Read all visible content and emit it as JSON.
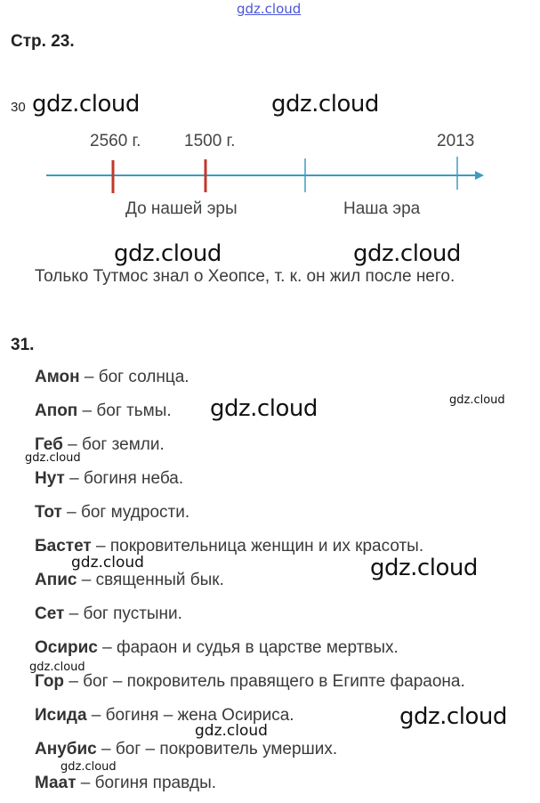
{
  "watermark": "gdz.cloud",
  "top_link": "gdz.cloud",
  "page_label": "Стр. 23.",
  "task30": {
    "number": "30",
    "timeline": {
      "marks": [
        {
          "label": "2560 г.",
          "color": "#c0392b"
        },
        {
          "label": "1500 г.",
          "color": "#c0392b"
        },
        {
          "label": "",
          "color": "#3a9bc7"
        },
        {
          "label": "2013",
          "color": "#3a9bc7"
        }
      ],
      "era_before": "До нашей эры",
      "era_after": "Наша эра",
      "axis_color": "#3a9bc7"
    },
    "answer": "Только Тутмос знал о Хеопсе, т. к. он жил после него."
  },
  "task31": {
    "number": "31.",
    "items": [
      {
        "name": "Амон",
        "desc": " – бог солнца."
      },
      {
        "name": "Апоп",
        "desc": " – бог тьмы."
      },
      {
        "name": "Геб",
        "desc": " – бог земли."
      },
      {
        "name": "Нут",
        "desc": " – богиня неба."
      },
      {
        "name": "Тот",
        "desc": " – бог мудрости."
      },
      {
        "name": "Бастет",
        "desc": " – покровительница женщин и их красоты."
      },
      {
        "name": "Апис",
        "desc": " – священный бык."
      },
      {
        "name": "Сет",
        "desc": " – бог пустыни."
      },
      {
        "name": "Осирис",
        "desc": " – фараон и судья в царстве мертвых."
      },
      {
        "name": "Гор",
        "desc": " – бог – покровитель правящего в Египте фараона."
      },
      {
        "name": "Исида",
        "desc": " – богиня – жена Осириса."
      },
      {
        "name": "Анубис",
        "desc": " – бог – покровитель умерших."
      },
      {
        "name": "Маат",
        "desc": " – богиня правды."
      }
    ]
  }
}
